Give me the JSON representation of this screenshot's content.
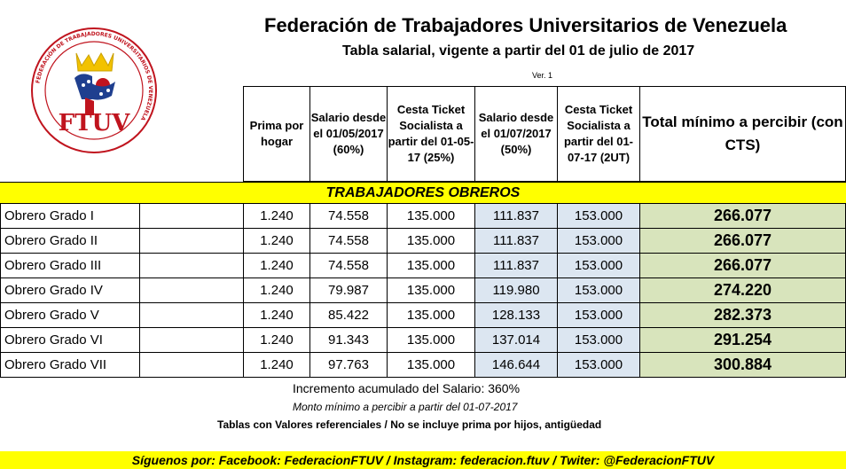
{
  "logo": {
    "text": "FTUV",
    "ring_text": "FEDERACIÓN DE TRABAJADORES UNIVERSITARIOS DE VENEZUELA"
  },
  "header": {
    "title": "Federación de Trabajadores Universitarios de Venezuela",
    "subtitle": "Tabla salarial, vigente a partir del 01 de julio de 2017",
    "version": "Ver. 1"
  },
  "columns": [
    "Prima por hogar",
    "Salario desde el 01/05/2017 (60%)",
    "Cesta Ticket Socialista a partir del 01-05-17 (25%)",
    "Salario desde el 01/07/2017 (50%)",
    "Cesta Ticket Socialista a partir del 01-07-17 (2UT)",
    "Total mínimo a percibir (con CTS)"
  ],
  "section_title": "TRABAJADORES OBREROS",
  "rows": [
    {
      "label": "Obrero Grado I",
      "prima": "1.240",
      "sal_may": "74.558",
      "cesta_may": "135.000",
      "sal_jul": "111.837",
      "cesta_jul": "153.000",
      "total": "266.077"
    },
    {
      "label": "Obrero Grado II",
      "prima": "1.240",
      "sal_may": "74.558",
      "cesta_may": "135.000",
      "sal_jul": "111.837",
      "cesta_jul": "153.000",
      "total": "266.077"
    },
    {
      "label": "Obrero Grado III",
      "prima": "1.240",
      "sal_may": "74.558",
      "cesta_may": "135.000",
      "sal_jul": "111.837",
      "cesta_jul": "153.000",
      "total": "266.077"
    },
    {
      "label": "Obrero Grado IV",
      "prima": "1.240",
      "sal_may": "79.987",
      "cesta_may": "135.000",
      "sal_jul": "119.980",
      "cesta_jul": "153.000",
      "total": "274.220"
    },
    {
      "label": "Obrero Grado V",
      "prima": "1.240",
      "sal_may": "85.422",
      "cesta_may": "135.000",
      "sal_jul": "128.133",
      "cesta_jul": "153.000",
      "total": "282.373"
    },
    {
      "label": "Obrero Grado VI",
      "prima": "1.240",
      "sal_may": "91.343",
      "cesta_may": "135.000",
      "sal_jul": "137.014",
      "cesta_jul": "153.000",
      "total": "291.254"
    },
    {
      "label": "Obrero Grado VII",
      "prima": "1.240",
      "sal_may": "97.763",
      "cesta_may": "135.000",
      "sal_jul": "146.644",
      "cesta_jul": "153.000",
      "total": "300.884"
    }
  ],
  "notes": {
    "increment": "Incremento acumulado del Salario:  360%",
    "monto": "Monto mínimo a percibir a partir del 01-07-2017",
    "tablas": "Tablas con Valores referenciales / No se incluye prima por hijos, antigüedad"
  },
  "footer": "Síguenos por: Facebook: FederacionFTUV / Instagram: federacion.ftuv / Twiter: @FederacionFTUV",
  "colors": {
    "yellow": "#ffff00",
    "blue_cell": "#dce6f1",
    "green_cell": "#d8e4bc",
    "logo_red": "#c0141e",
    "logo_blue": "#1f3f8f"
  }
}
